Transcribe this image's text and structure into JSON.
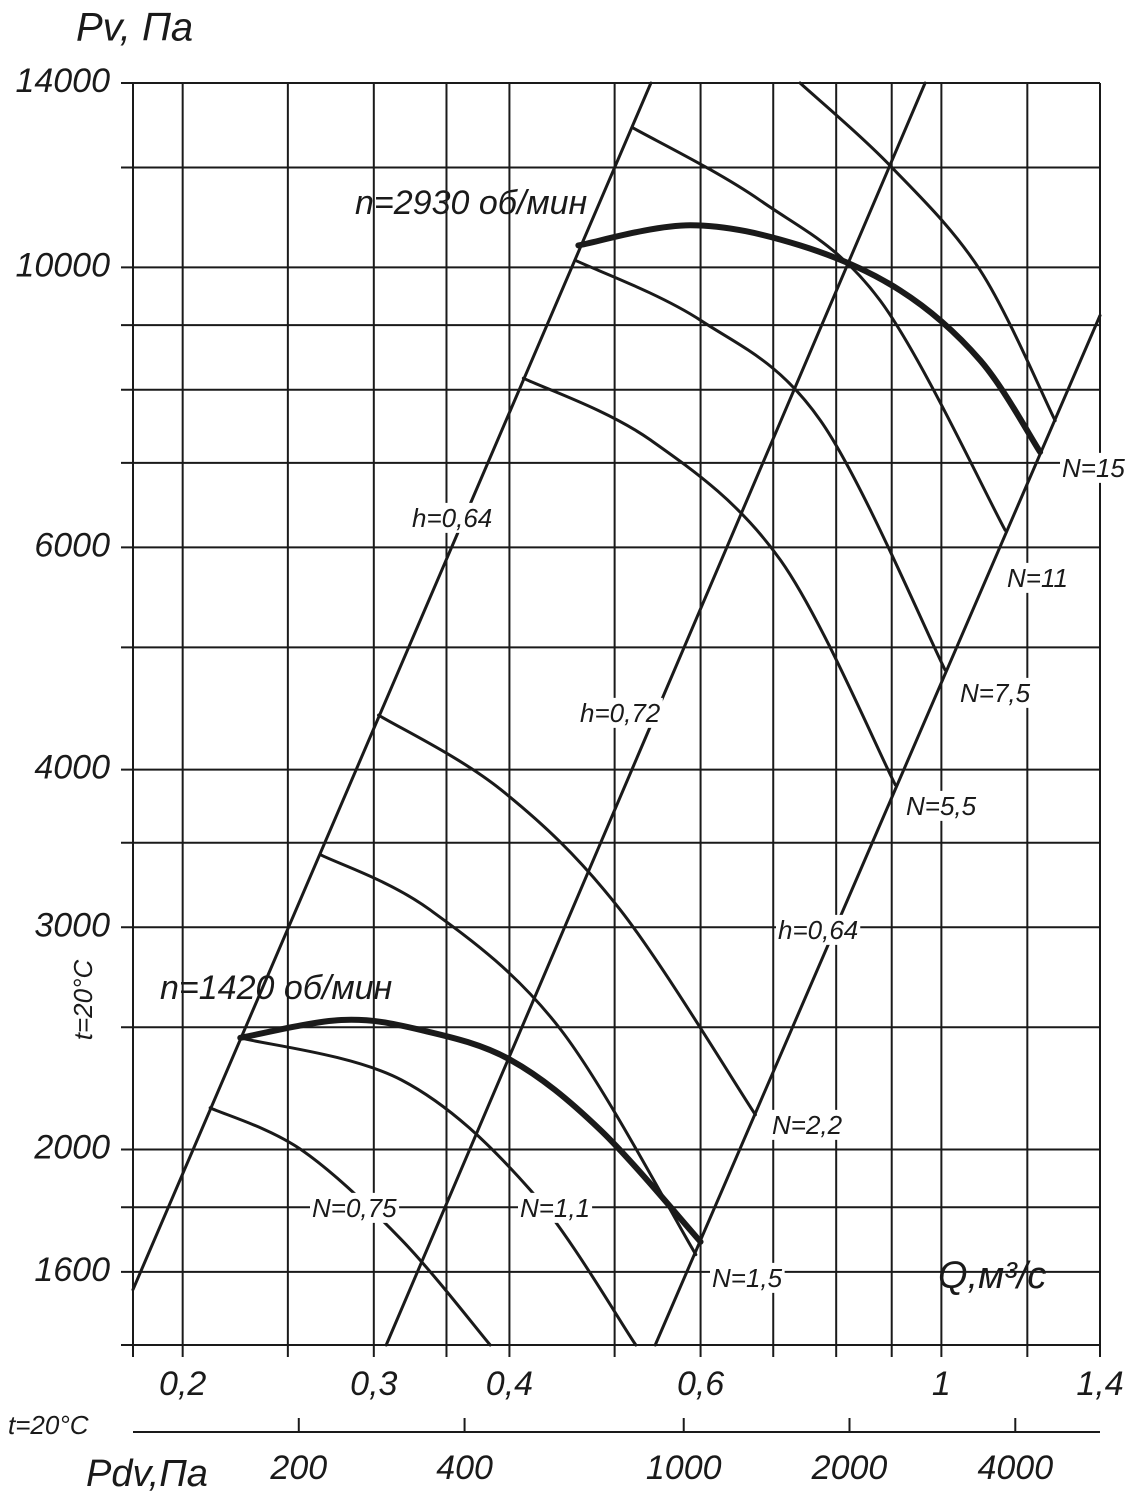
{
  "chart_data": {
    "type": "line",
    "y_label": "Pv, Па",
    "x_label": "Q,м³/с",
    "x2_label": "Pdv,Па",
    "annotations": [
      "t=20°C",
      "t=20°C"
    ],
    "xlog": true,
    "ylog": true,
    "x2log": true,
    "grid": true,
    "xlim": [
      0.18,
      1.4
    ],
    "xticks": [
      {
        "value": 0.2,
        "label": "0,2"
      },
      {
        "value": 0.3,
        "label": "0,3"
      },
      {
        "value": 0.4,
        "label": "0,4"
      },
      {
        "value": 0.6,
        "label": "0,6"
      },
      1,
      {
        "value": 1.4,
        "label": "1,4"
      }
    ],
    "xgrid_minor": [
      0.25,
      0.35,
      0.5,
      0.7,
      0.8,
      0.9,
      1.2
    ],
    "ylim": [
      1400,
      14000
    ],
    "yticks": [
      1600,
      2000,
      3000,
      4000,
      6000,
      10000,
      14000
    ],
    "ygrid_minor": [
      1800,
      2500,
      3500,
      5000,
      7000,
      8000,
      9000,
      12000
    ],
    "x2lim": [
      100,
      5700
    ],
    "x2ticks": [
      200,
      400,
      1000,
      2000,
      4000
    ],
    "series": [
      {
        "name": "n=2930 об/мин",
        "color": "#1a1a1a",
        "width": 6,
        "x": [
          0.463,
          0.587,
          0.741,
          0.916,
          1.086,
          1.233
        ],
        "values": [
          10410,
          10800,
          10410,
          9590,
          8440,
          7140
        ]
      },
      {
        "name": "n=1420 об/мин",
        "color": "#1a1a1a",
        "width": 6,
        "x": [
          0.226,
          0.28,
          0.331,
          0.401,
          0.485,
          0.6
        ],
        "values": [
          2452,
          2533,
          2488,
          2355,
          2073,
          1690
        ]
      },
      {
        "name": "h=0,64",
        "color": "#1a1a1a",
        "width": 3,
        "x": [
          0.18,
          0.54
        ],
        "values": [
          1549,
          14000
        ]
      },
      {
        "name": "h=0,72",
        "color": "#1a1a1a",
        "width": 3,
        "x": [
          0.308,
          0.966
        ],
        "values": [
          1400,
          14000
        ]
      },
      {
        "name": "h=0,64",
        "color": "#1a1a1a",
        "width": 3,
        "x": [
          0.545,
          1.4
        ],
        "values": [
          1400,
          9160
        ]
      },
      {
        "name": "N=15",
        "color": "#1a1a1a",
        "width": 3,
        "x": [
          0.741,
          0.897,
          1.086,
          1.273
        ],
        "values": [
          14000,
          12040,
          9945,
          7560
        ]
      },
      {
        "name": "N=11",
        "color": "#1a1a1a",
        "width": 3,
        "x": [
          0.519,
          0.681,
          0.878,
          1.145
        ],
        "values": [
          12910,
          11300,
          9416,
          6190
        ]
      },
      {
        "name": "N=7,5",
        "color": "#1a1a1a",
        "width": 3,
        "x": [
          0.46,
          0.6,
          0.774,
          1.008
        ],
        "values": [
          10130,
          9080,
          7560,
          4797
        ]
      },
      {
        "name": "N=5,5",
        "color": "#1a1a1a",
        "width": 3,
        "x": [
          0.412,
          0.54,
          0.711,
          0.907
        ],
        "values": [
          8170,
          7295,
          5861,
          3890
        ]
      },
      {
        "name": "N=2,2",
        "color": "#1a1a1a",
        "width": 3,
        "x": [
          0.303,
          0.393,
          0.506,
          0.674
        ],
        "values": [
          4418,
          3855,
          3097,
          2131
        ]
      },
      {
        "name": "N=1,5",
        "color": "#1a1a1a",
        "width": 3,
        "x": [
          0.268,
          0.338,
          0.446,
          0.594
        ],
        "values": [
          3424,
          3097,
          2489,
          1651
        ]
      },
      {
        "name": "N=1,1",
        "color": "#1a1a1a",
        "width": 3,
        "x": [
          0.226,
          0.318,
          0.418,
          0.523
        ],
        "values": [
          2452,
          2271,
          1858,
          1400
        ]
      },
      {
        "name": "N=0,75",
        "color": "#1a1a1a",
        "width": 3,
        "x": [
          0.212,
          0.257,
          0.318,
          0.384
        ],
        "values": [
          2158,
          2000,
          1697,
          1400
        ]
      }
    ]
  }
}
